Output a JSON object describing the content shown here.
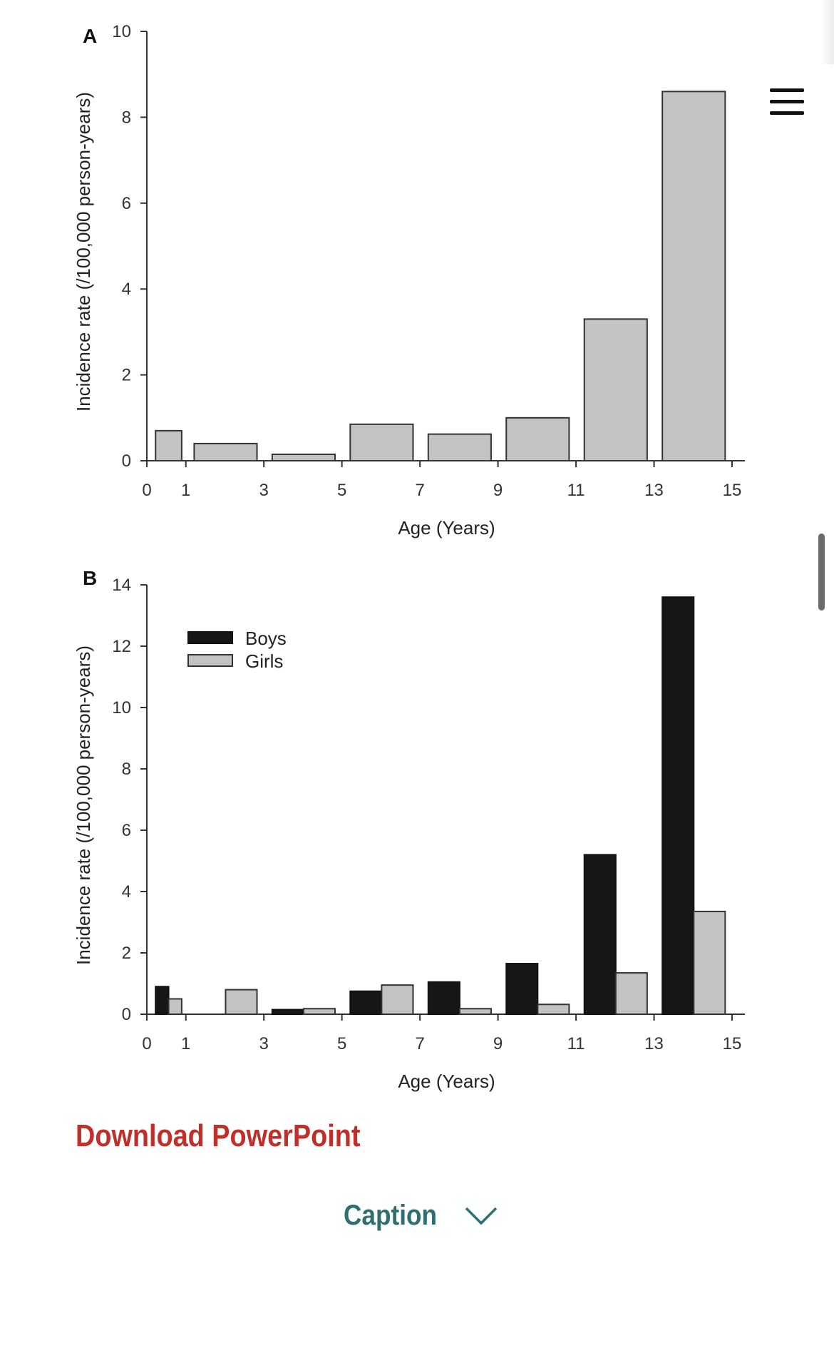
{
  "chart_data": [
    {
      "type": "bar",
      "panel": "A",
      "xlabel": "Age (Years)",
      "ylabel": "Incidence rate (/100,000 person-years)",
      "ylim": [
        0,
        10
      ],
      "yticks": [
        0,
        2,
        4,
        6,
        8,
        10
      ],
      "xlim": [
        0,
        15
      ],
      "xticks": [
        "0",
        "1",
        "3",
        "5",
        "7",
        "9",
        "11",
        "13",
        "15"
      ],
      "bins": [
        [
          0,
          1
        ],
        [
          1,
          3
        ],
        [
          3,
          5
        ],
        [
          5,
          7
        ],
        [
          7,
          9
        ],
        [
          9,
          11
        ],
        [
          11,
          13
        ],
        [
          13,
          15
        ]
      ],
      "series": [
        {
          "values": [
            0.7,
            0.4,
            0.15,
            0.85,
            0.62,
            1.0,
            3.3,
            8.6
          ],
          "color": "#c3c3c3"
        }
      ]
    },
    {
      "type": "bar",
      "panel": "B",
      "xlabel": "Age (Years)",
      "ylabel": "Incidence rate (/100,000 person-years)",
      "ylim": [
        0,
        14
      ],
      "yticks": [
        0,
        2,
        4,
        6,
        8,
        10,
        12,
        14
      ],
      "xlim": [
        0,
        15
      ],
      "xticks": [
        "0",
        "1",
        "3",
        "5",
        "7",
        "9",
        "11",
        "13",
        "15"
      ],
      "bins": [
        [
          0,
          1
        ],
        [
          1,
          3
        ],
        [
          3,
          5
        ],
        [
          5,
          7
        ],
        [
          7,
          9
        ],
        [
          9,
          11
        ],
        [
          11,
          13
        ],
        [
          13,
          15
        ]
      ],
      "legend": "top-left",
      "series": [
        {
          "name": "Boys",
          "values": [
            0.9,
            0.0,
            0.15,
            0.75,
            1.05,
            1.65,
            5.2,
            13.6
          ],
          "color": "#161616"
        },
        {
          "name": "Girls",
          "values": [
            0.5,
            0.8,
            0.18,
            0.95,
            0.18,
            0.32,
            1.35,
            3.35
          ],
          "color": "#c3c3c3"
        }
      ]
    }
  ],
  "actions": {
    "download_label": "Download PowerPoint",
    "caption_label": "Caption"
  },
  "icons": {
    "menu": "hamburger-menu-icon",
    "caption_toggle": "chevron-down-icon"
  },
  "colors": {
    "download_link": "#c0302a",
    "caption_link": "#2f6f72"
  }
}
